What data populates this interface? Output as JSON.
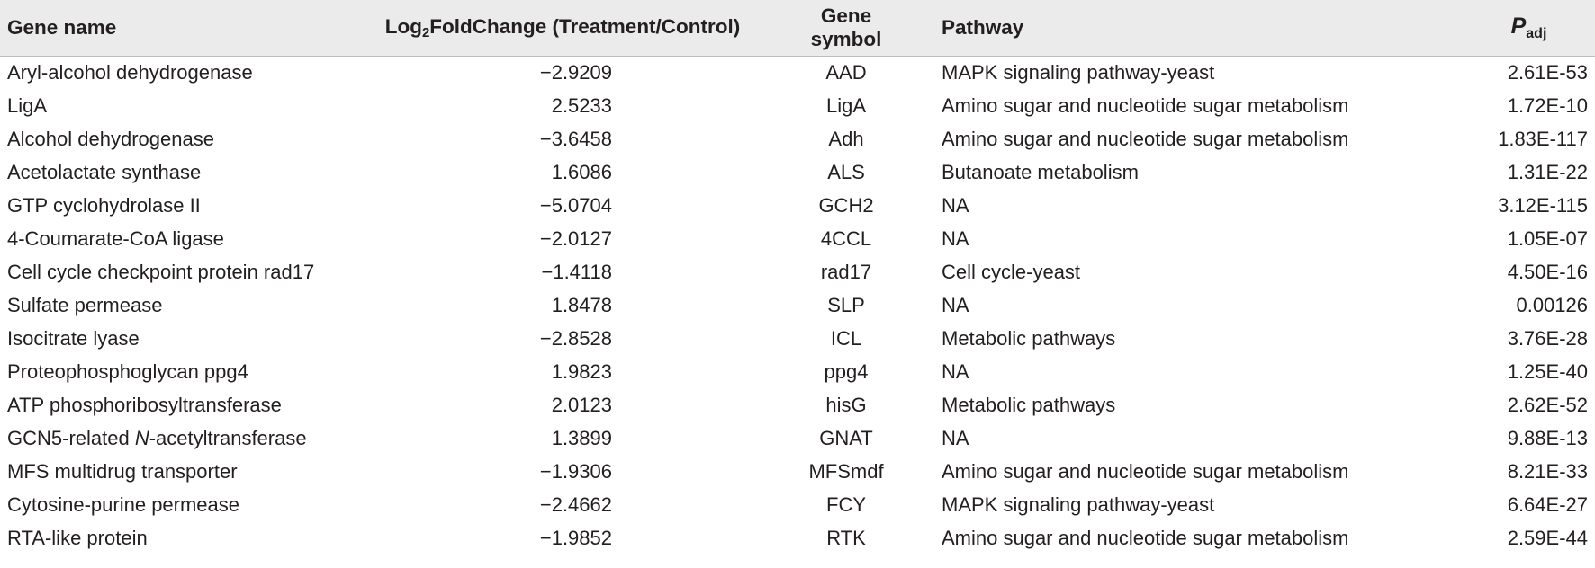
{
  "headers": {
    "gene_name": "Gene name",
    "fc_prefix": "Log",
    "fc_sub": "2",
    "fc_suffix": "FoldChange (Treatment/Control)",
    "gene_symbol": "Gene symbol",
    "pathway": "Pathway",
    "p_main": "P",
    "p_sub": "adj"
  },
  "rows": [
    {
      "name": "Aryl-alcohol dehydrogenase",
      "fc": "−2.9209",
      "symbol": "AAD",
      "pathway": "MAPK signaling pathway-yeast",
      "padj": "2.61E-53"
    },
    {
      "name": "LigA",
      "fc": "2.5233",
      "symbol": "LigA",
      "pathway": "Amino sugar and nucleotide sugar metabolism",
      "padj": "1.72E-10"
    },
    {
      "name": "Alcohol dehydrogenase",
      "fc": "−3.6458",
      "symbol": "Adh",
      "pathway": "Amino sugar and nucleotide sugar metabolism",
      "padj": "1.83E-117"
    },
    {
      "name": "Acetolactate synthase",
      "fc": "1.6086",
      "symbol": "ALS",
      "pathway": "Butanoate metabolism",
      "padj": "1.31E-22"
    },
    {
      "name": "GTP cyclohydrolase II",
      "fc": "−5.0704",
      "symbol": "GCH2",
      "pathway": "NA",
      "padj": "3.12E-115"
    },
    {
      "name": "4-Coumarate-CoA ligase",
      "fc": "−2.0127",
      "symbol": "4CCL",
      "pathway": "NA",
      "padj": "1.05E-07"
    },
    {
      "name": "Cell cycle checkpoint protein rad17",
      "fc": "−1.4118",
      "symbol": "rad17",
      "pathway": "Cell cycle-yeast",
      "padj": "4.50E-16"
    },
    {
      "name": "Sulfate permease",
      "fc": "1.8478",
      "symbol": "SLP",
      "pathway": "NA",
      "padj": "0.00126"
    },
    {
      "name": "Isocitrate lyase",
      "fc": "−2.8528",
      "symbol": "ICL",
      "pathway": "Metabolic pathways",
      "padj": "3.76E-28"
    },
    {
      "name": "Proteophosphoglycan ppg4",
      "fc": "1.9823",
      "symbol": "ppg4",
      "pathway": "NA",
      "padj": "1.25E-40"
    },
    {
      "name": "ATP phosphoribosyltransferase",
      "fc": "2.0123",
      "symbol": "hisG",
      "pathway": "Metabolic pathways",
      "padj": "2.62E-52"
    },
    {
      "name_pre": "GCN5-related ",
      "name_it": "N",
      "name_post": "-acetyltransferase",
      "fc": "1.3899",
      "symbol": "GNAT",
      "pathway": "NA",
      "padj": "9.88E-13"
    },
    {
      "name": "MFS multidrug transporter",
      "fc": "−1.9306",
      "symbol": "MFSmdf",
      "pathway": "Amino sugar and nucleotide sugar metabolism",
      "padj": "8.21E-33"
    },
    {
      "name": "Cytosine-purine permease",
      "fc": "−2.4662",
      "symbol": "FCY",
      "pathway": "MAPK signaling pathway-yeast",
      "padj": "6.64E-27"
    },
    {
      "name": "RTA-like protein",
      "fc": "−1.9852",
      "symbol": "RTK",
      "pathway": "Amino sugar and nucleotide sugar metabolism",
      "padj": "2.59E-44"
    }
  ]
}
